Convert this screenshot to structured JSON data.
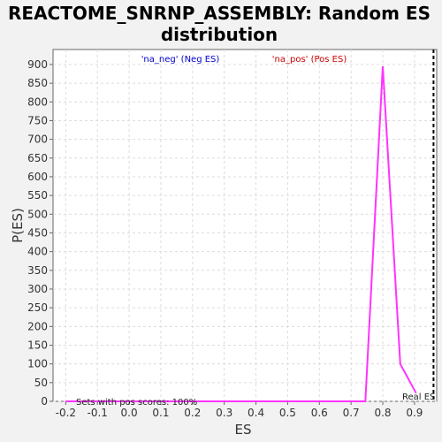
{
  "chart_data": {
    "type": "line",
    "title_lines": [
      "REACTOME_SNRNP_ASSEMBLY: Random ES",
      "distribution"
    ],
    "xlabel": "ES",
    "ylabel": "P(ES)",
    "xlim": [
      -0.24,
      0.97
    ],
    "ylim": [
      0,
      940
    ],
    "x_ticks": [
      -0.2,
      -0.1,
      0.0,
      0.1,
      0.2,
      0.3,
      0.4,
      0.5,
      0.6,
      0.7,
      0.8,
      0.9
    ],
    "x_tick_labels": [
      "-0.2",
      "-0.1",
      "0.0",
      "0.1",
      "0.2",
      "0.3",
      "0.4",
      "0.5",
      "0.6",
      "0.7",
      "0.8",
      "0.9"
    ],
    "y_ticks": [
      0,
      50,
      100,
      150,
      200,
      250,
      300,
      350,
      400,
      450,
      500,
      550,
      600,
      650,
      700,
      750,
      800,
      850,
      900
    ],
    "y_tick_labels": [
      "0",
      "50",
      "100",
      "150",
      "200",
      "250",
      "300",
      "350",
      "400",
      "450",
      "500",
      "550",
      "600",
      "650",
      "700",
      "750",
      "800",
      "850",
      "900"
    ],
    "grid": true,
    "legend": [
      {
        "label": "'na_neg' (Neg ES)",
        "color": "#0000cc"
      },
      {
        "label": "'na_pos' (Pos ES)",
        "color": "#cc0000"
      }
    ],
    "series": [
      {
        "color": "#ff33ff",
        "x": [
          -0.2,
          0.745,
          0.8,
          0.855,
          0.905
        ],
        "y": [
          0,
          0,
          895,
          100,
          22
        ]
      }
    ],
    "real_es": {
      "x": 0.96,
      "label": "Real ES"
    },
    "annotation": "Sets with pos scores: 100%"
  }
}
